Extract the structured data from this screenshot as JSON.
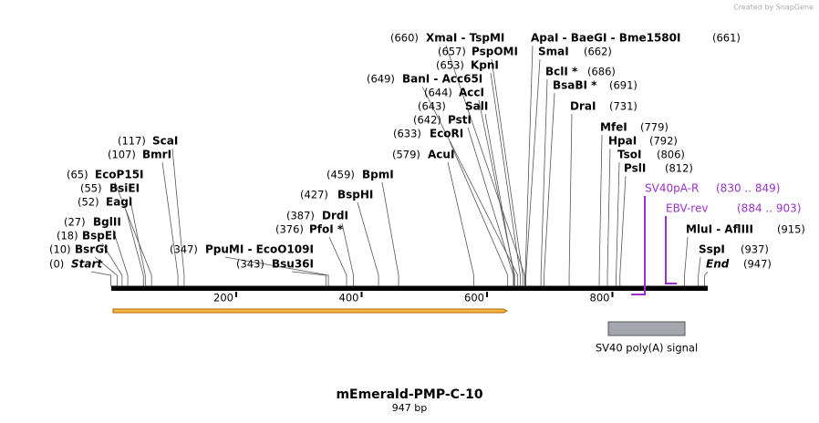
{
  "header": {
    "credit": "Created by SnapGene"
  },
  "map": {
    "title": "mEmerald-PMP-C-10",
    "length": "947 bp",
    "feature": "SV40 poly(A) signal",
    "ruler": [
      200,
      400,
      600,
      800
    ],
    "primers": [
      {
        "name": "SV40pA-R",
        "range": "(830 .. 849)"
      },
      {
        "name": "EBV-rev",
        "range": "(884 .. 903)"
      }
    ],
    "sites": [
      {
        "name": "XmaI  - TspMI",
        "position": "(660)"
      },
      {
        "name": "ApaI  - BaeGI  - Bme1580I",
        "position": "(661)"
      },
      {
        "name": "PspOMI",
        "position": "(657)"
      },
      {
        "name": "SmaI",
        "position": "(662)"
      },
      {
        "name": "KpnI",
        "position": "(653)"
      },
      {
        "name": "BclI *",
        "position": "(686)"
      },
      {
        "name": "BanI  - Acc65I",
        "position": "(649)"
      },
      {
        "name": "BsaBI *",
        "position": "(691)"
      },
      {
        "name": "AccI",
        "position": "(644)"
      },
      {
        "name": "SalI",
        "position": "(643)"
      },
      {
        "name": "DraI",
        "position": "(731)"
      },
      {
        "name": "PstI",
        "position": "(642)"
      },
      {
        "name": "EcoRI",
        "position": "(633)"
      },
      {
        "name": "MfeI",
        "position": "(779)"
      },
      {
        "name": "HpaI",
        "position": "(792)"
      },
      {
        "name": "AcuI",
        "position": "(579)"
      },
      {
        "name": "TsoI",
        "position": "(806)"
      },
      {
        "name": "PslI",
        "position": "(812)"
      },
      {
        "name": "ScaI",
        "position": "(117)"
      },
      {
        "name": "BmrI",
        "position": "(107)"
      },
      {
        "name": "EcoP15I",
        "position": "(65)"
      },
      {
        "name": "BsiEI",
        "position": "(55)"
      },
      {
        "name": "EagI",
        "position": "(52)"
      },
      {
        "name": "BpmI",
        "position": "(459)"
      },
      {
        "name": "BspHI",
        "position": "(427)"
      },
      {
        "name": "DrdI",
        "position": "(387)"
      },
      {
        "name": "PfoI *",
        "position": "(376)"
      },
      {
        "name": "BglII",
        "position": "(27)"
      },
      {
        "name": "BspEI",
        "position": "(18)"
      },
      {
        "name": "BsrGI",
        "position": "(10)"
      },
      {
        "name": "Start",
        "position": "(0)"
      },
      {
        "name": "PpuMI  - EcoO109I",
        "position": "(347)"
      },
      {
        "name": "Bsu36I",
        "position": "(343)"
      },
      {
        "name": "MluI  - AflIII",
        "position": "(915)"
      },
      {
        "name": "SspI",
        "position": "(937)"
      },
      {
        "name": "End",
        "position": "(947)"
      }
    ]
  }
}
